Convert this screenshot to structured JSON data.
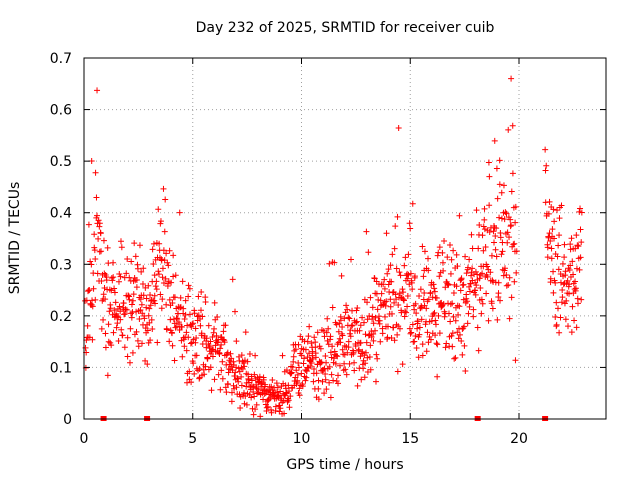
{
  "chart_data": {
    "type": "scatter",
    "title": "Day 232 of 2025, SRMTID for receiver cuib",
    "xlabel": "GPS time / hours",
    "ylabel": "SRMTID / TECUs",
    "xlim": [
      0,
      24
    ],
    "ylim": [
      0,
      0.7
    ],
    "xticks": [
      0,
      5,
      10,
      15,
      20
    ],
    "xtick_labels": [
      "0",
      "5",
      "10",
      "15",
      "20"
    ],
    "yticks": [
      0,
      0.1,
      0.2,
      0.3,
      0.4,
      0.5,
      0.6,
      0.7
    ],
    "ytick_labels": [
      "0",
      "0.1",
      "0.2",
      "0.3",
      "0.4",
      "0.5",
      "0.6",
      "0.7"
    ],
    "grid": true,
    "marker": "plus",
    "color": "#ff0000",
    "trend": {
      "x": [
        0,
        0.3,
        0.6,
        0.8,
        1.0,
        1.5,
        2.0,
        2.5,
        3.0,
        3.5,
        4.0,
        4.5,
        5.0,
        5.5,
        6.0,
        6.5,
        7.0,
        7.5,
        8.0,
        8.5,
        9.0,
        9.5,
        10.0,
        10.5,
        11.0,
        11.5,
        12.0,
        12.5,
        13.0,
        13.5,
        14.0,
        14.5,
        15.0,
        15.5,
        16.0,
        16.5,
        17.0,
        17.5,
        18.0,
        18.5,
        19.0,
        19.5,
        19.9,
        21.2,
        21.6,
        22.0,
        22.5,
        22.9
      ],
      "y": [
        0.17,
        0.22,
        0.42,
        0.3,
        0.22,
        0.21,
        0.24,
        0.23,
        0.22,
        0.3,
        0.22,
        0.19,
        0.16,
        0.15,
        0.14,
        0.12,
        0.08,
        0.07,
        0.06,
        0.045,
        0.04,
        0.07,
        0.11,
        0.11,
        0.12,
        0.14,
        0.15,
        0.15,
        0.16,
        0.19,
        0.24,
        0.24,
        0.21,
        0.23,
        0.22,
        0.2,
        0.21,
        0.22,
        0.26,
        0.3,
        0.33,
        0.36,
        0.34,
        0.38,
        0.3,
        0.27,
        0.29,
        0.32
      ],
      "spread": [
        0.05,
        0.07,
        0.12,
        0.09,
        0.07,
        0.07,
        0.07,
        0.07,
        0.07,
        0.08,
        0.07,
        0.07,
        0.06,
        0.06,
        0.06,
        0.05,
        0.035,
        0.035,
        0.03,
        0.025,
        0.025,
        0.035,
        0.04,
        0.04,
        0.045,
        0.05,
        0.05,
        0.05,
        0.06,
        0.07,
        0.08,
        0.08,
        0.08,
        0.08,
        0.08,
        0.08,
        0.08,
        0.08,
        0.09,
        0.1,
        0.11,
        0.12,
        0.12,
        0.1,
        0.09,
        0.08,
        0.08,
        0.09
      ],
      "gaps": [
        [
          19.9,
          21.2
        ],
        [
          22.9,
          24
        ]
      ],
      "sample_count": 1400
    },
    "zero_markers_x": [
      0.9,
      2.9,
      18.1,
      21.2
    ]
  }
}
